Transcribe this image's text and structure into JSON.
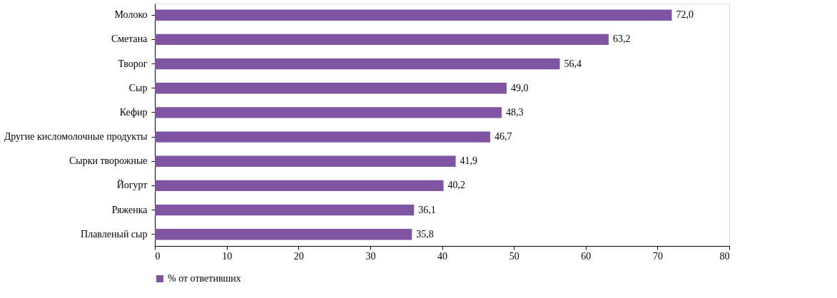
{
  "chart_data": {
    "type": "bar",
    "orientation": "horizontal",
    "categories": [
      "Молоко",
      "Сметана",
      "Творог",
      "Сыр",
      "Кефир",
      "Другие кисломолочные продукты",
      "Сырки творожные",
      "Йогурт",
      "Ряженка",
      "Плавленый сыр"
    ],
    "series": [
      {
        "name": "% от ответивших",
        "color": "#7f55a3",
        "values": [
          72.0,
          63.2,
          56.4,
          49.0,
          48.3,
          46.7,
          41.9,
          40.2,
          36.1,
          35.8
        ],
        "value_labels": [
          "72,0",
          "63,2",
          "56,4",
          "49,0",
          "48,3",
          "46,7",
          "41,9",
          "40,2",
          "36,1",
          "35,8"
        ]
      }
    ],
    "xlim": [
      0,
      80
    ],
    "xticks": [
      0,
      10,
      20,
      30,
      40,
      50,
      60,
      70,
      80
    ],
    "legend": "bottom",
    "grid": false
  }
}
